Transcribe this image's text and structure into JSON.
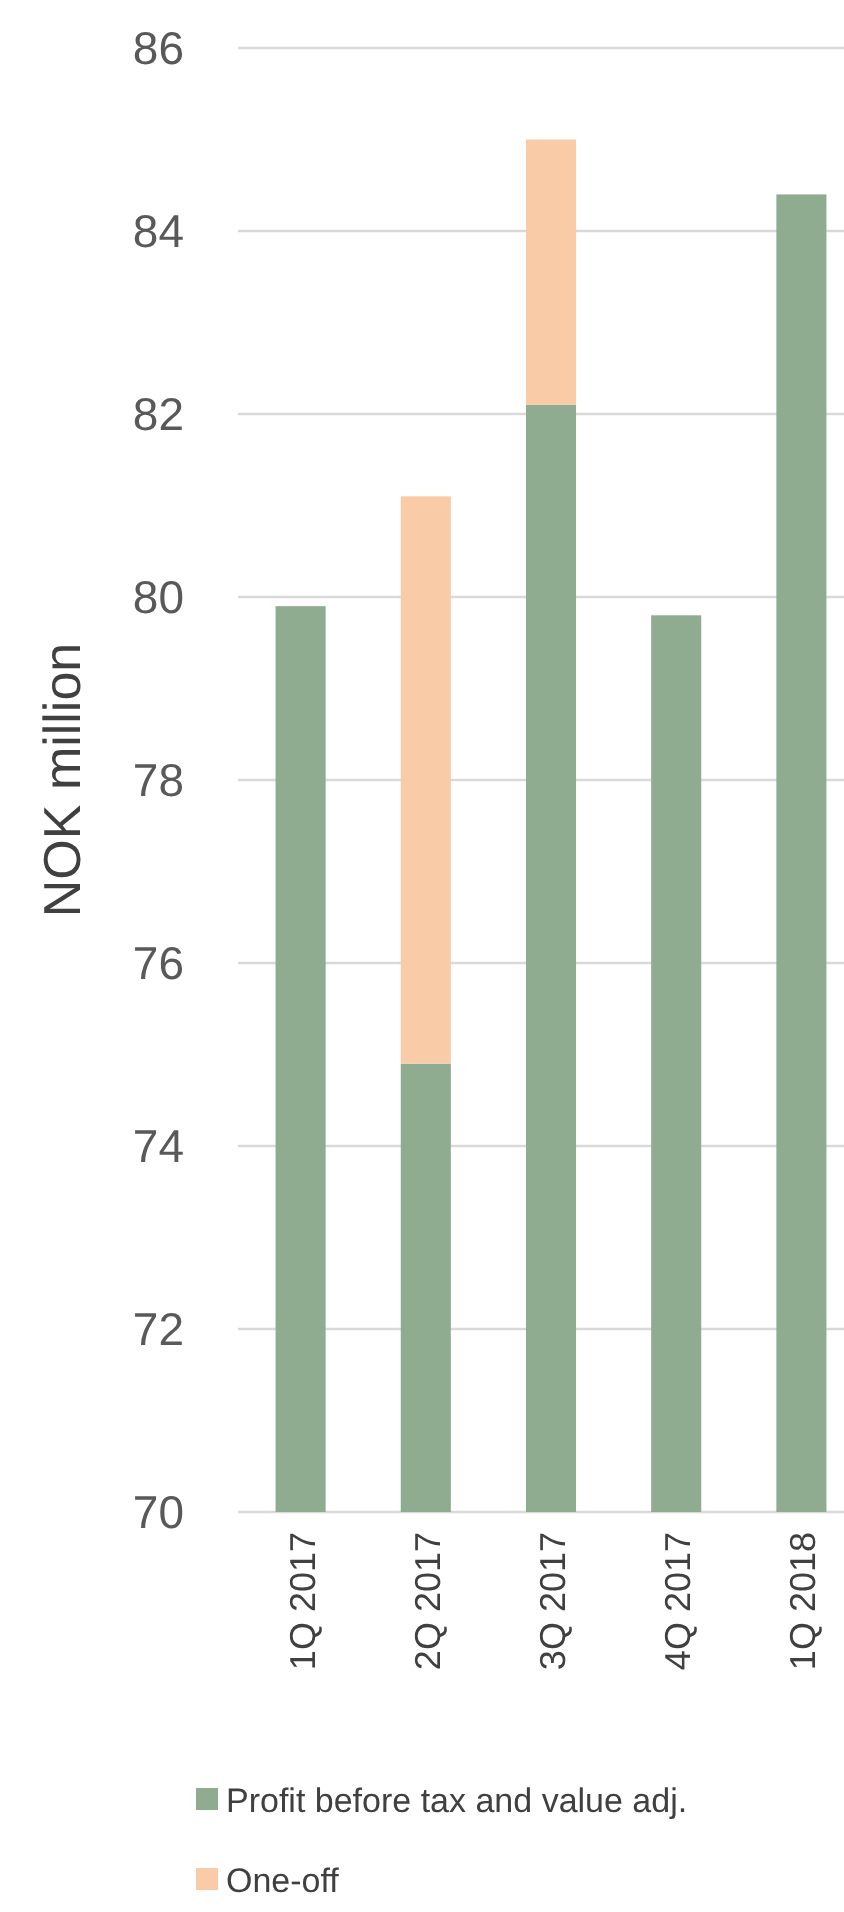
{
  "chart_data": {
    "type": "bar",
    "ylabel": "NOK million",
    "categories": [
      "1Q 2017",
      "2Q 2017",
      "3Q 2017",
      "4Q 2017",
      "1Q 2018"
    ],
    "series": [
      {
        "name": "Profit before tax and value adj.",
        "color": "#8fac90",
        "values": [
          79.9,
          74.9,
          82.1,
          79.8,
          84.4
        ]
      },
      {
        "name": "One-off",
        "color": "#f9cba6",
        "values": [
          null,
          6.2,
          2.9,
          null,
          null
        ],
        "base": [
          null,
          74.9,
          82.1,
          null,
          null
        ]
      }
    ],
    "ylim": [
      70,
      86
    ],
    "yticks": [
      70,
      72,
      74,
      76,
      78,
      80,
      82,
      84,
      86
    ],
    "grid": "y",
    "legend": "bottom"
  }
}
